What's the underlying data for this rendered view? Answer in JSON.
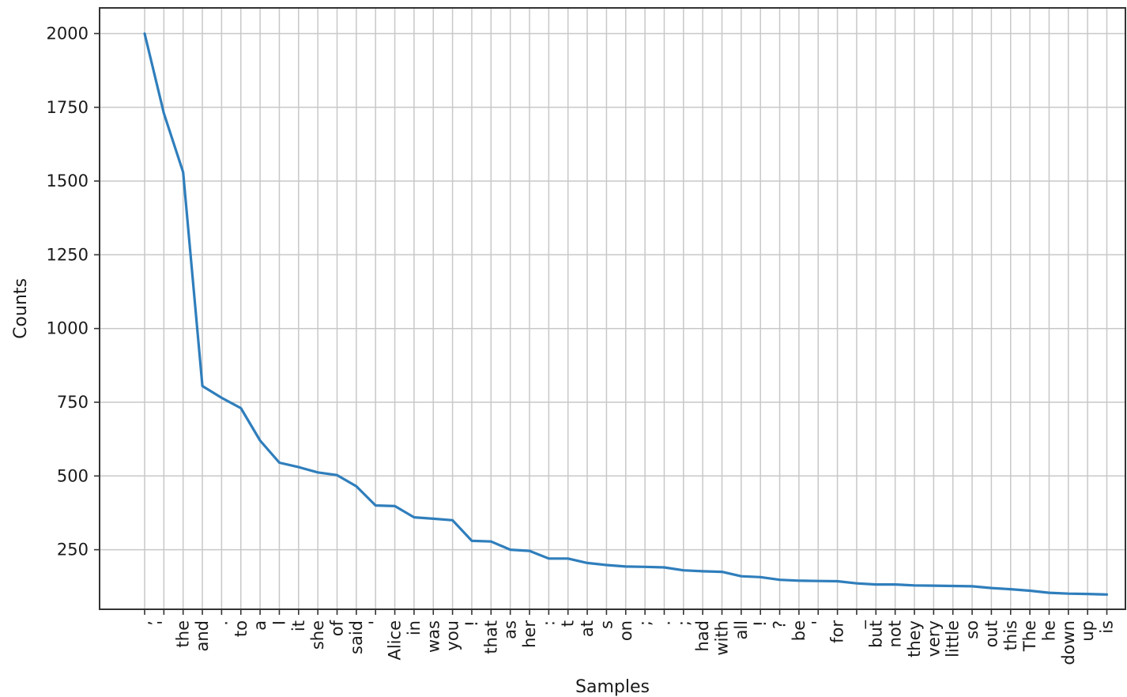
{
  "chart_data": {
    "type": "line",
    "title": "",
    "xlabel": "Samples",
    "ylabel": "Counts",
    "grid": true,
    "ylim": [
      48,
      2087
    ],
    "y_ticks": [
      250,
      500,
      750,
      1000,
      1250,
      1500,
      1750,
      2000
    ],
    "line_color": "#2f7ebc",
    "categories": [
      ",",
      "'",
      "the",
      "and",
      ".",
      "to",
      "a",
      "I",
      "it",
      "she",
      "of",
      "said",
      "'",
      "Alice",
      "in",
      "was",
      "you",
      "!",
      "that",
      "as",
      "her",
      ":",
      "t",
      "at",
      "s",
      "on",
      ";",
      ".",
      ";",
      "had",
      "with",
      "all",
      "!",
      "?",
      "be",
      "'",
      "for",
      "_",
      "but",
      "not",
      "they",
      "very",
      "little",
      "so",
      "out",
      "this",
      "The",
      "he",
      "down",
      "up",
      "is"
    ],
    "values": [
      2000,
      1730,
      1530,
      805,
      765,
      730,
      620,
      545,
      530,
      512,
      503,
      465,
      400,
      398,
      360,
      355,
      350,
      280,
      278,
      250,
      246,
      220,
      220,
      205,
      198,
      193,
      192,
      190,
      180,
      177,
      175,
      160,
      157,
      148,
      145,
      144,
      143,
      136,
      132,
      132,
      129,
      128,
      127,
      126,
      120,
      116,
      111,
      104,
      101,
      100,
      98
    ]
  }
}
